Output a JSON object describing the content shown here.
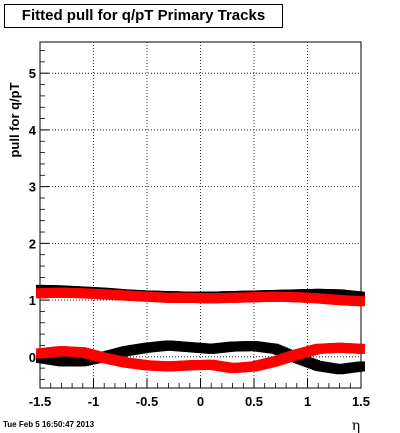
{
  "chart_data": {
    "type": "scatter",
    "title": "Fitted pull for q/pT  Primary Tracks",
    "xlabel": "η",
    "ylabel": "pull for q/pT",
    "xlim": [
      -1.5,
      1.5
    ],
    "ylim": [
      -0.55,
      5.55
    ],
    "x_ticks": [
      "-1.5",
      "-1",
      "-0.5",
      "0",
      "0.5",
      "1",
      "1.5"
    ],
    "y_ticks": [
      "0",
      "1",
      "2",
      "3",
      "4",
      "5"
    ],
    "grid": true,
    "footer": "Tue Feb  5 16:50:47 2013",
    "series": [
      {
        "color": "#000000",
        "role": "sigma",
        "x": [
          -1.5,
          -1.3,
          -1.1,
          -0.9,
          -0.7,
          -0.5,
          -0.3,
          -0.1,
          0.1,
          0.3,
          0.5,
          0.7,
          0.9,
          1.1,
          1.3,
          1.5
        ],
        "y": [
          1.18,
          1.17,
          1.15,
          1.13,
          1.1,
          1.08,
          1.07,
          1.06,
          1.06,
          1.07,
          1.08,
          1.09,
          1.1,
          1.11,
          1.1,
          1.06
        ]
      },
      {
        "color": "#000000",
        "role": "mean",
        "x": [
          -1.5,
          -1.3,
          -1.1,
          -0.9,
          -0.7,
          -0.5,
          -0.3,
          -0.1,
          0.1,
          0.3,
          0.5,
          0.7,
          0.9,
          1.1,
          1.3,
          1.5
        ],
        "y": [
          -0.02,
          -0.08,
          -0.08,
          0.0,
          0.1,
          0.16,
          0.2,
          0.17,
          0.14,
          0.18,
          0.19,
          0.14,
          -0.02,
          -0.16,
          -0.22,
          -0.17
        ]
      },
      {
        "color": "#ff0000",
        "role": "sigma",
        "x": [
          -1.5,
          -1.3,
          -1.1,
          -0.9,
          -0.7,
          -0.5,
          -0.3,
          -0.1,
          0.1,
          0.3,
          0.5,
          0.7,
          0.9,
          1.1,
          1.3,
          1.5
        ],
        "y": [
          1.12,
          1.13,
          1.12,
          1.1,
          1.08,
          1.06,
          1.04,
          1.04,
          1.03,
          1.04,
          1.05,
          1.06,
          1.05,
          1.03,
          1.0,
          0.98
        ]
      },
      {
        "color": "#ff0000",
        "role": "mean",
        "x": [
          -1.5,
          -1.3,
          -1.1,
          -0.9,
          -0.7,
          -0.5,
          -0.3,
          -0.1,
          0.1,
          0.3,
          0.5,
          0.7,
          0.9,
          1.1,
          1.3,
          1.5
        ],
        "y": [
          0.06,
          0.1,
          0.08,
          -0.02,
          -0.1,
          -0.15,
          -0.17,
          -0.15,
          -0.14,
          -0.2,
          -0.17,
          -0.08,
          0.04,
          0.14,
          0.16,
          0.14
        ]
      }
    ]
  }
}
